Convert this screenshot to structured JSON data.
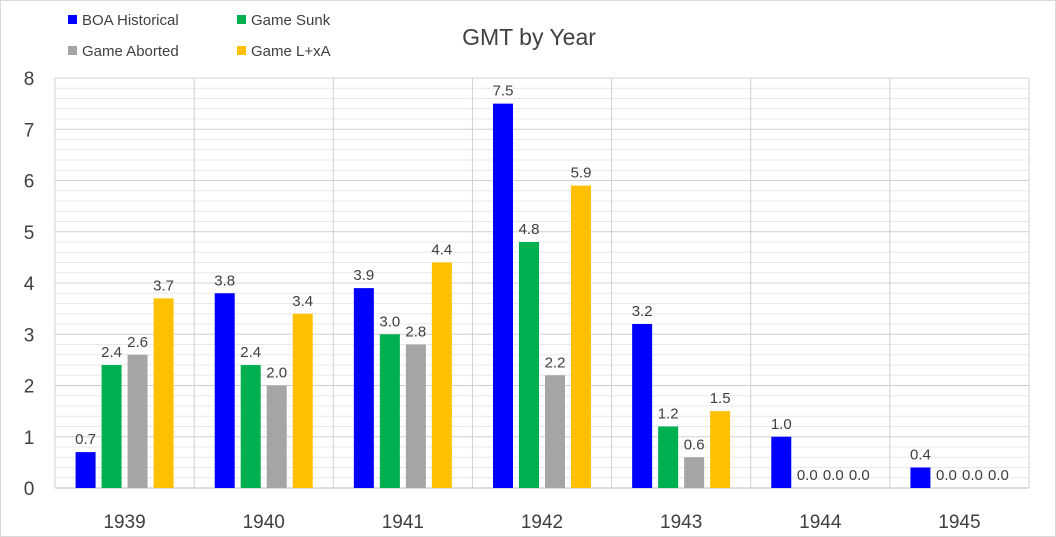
{
  "chart_data": {
    "type": "bar",
    "title": "GMT by Year",
    "xlabel": "",
    "ylabel": "",
    "categories": [
      "1939",
      "1940",
      "1941",
      "1942",
      "1943",
      "1944",
      "1945"
    ],
    "series": [
      {
        "name": "BOA Historical",
        "color": "#0000ff",
        "values": [
          0.7,
          3.8,
          3.9,
          7.5,
          3.2,
          1.0,
          0.4
        ]
      },
      {
        "name": "Game Sunk",
        "color": "#00b050",
        "values": [
          2.4,
          2.4,
          3.0,
          4.8,
          1.2,
          0.0,
          0.0
        ]
      },
      {
        "name": "Game Aborted",
        "color": "#a5a5a5",
        "values": [
          2.6,
          2.0,
          2.8,
          2.2,
          0.6,
          0.0,
          0.0
        ]
      },
      {
        "name": "Game L+xA",
        "color": "#ffc000",
        "values": [
          3.7,
          3.4,
          4.4,
          5.9,
          1.5,
          0.0,
          0.0
        ]
      }
    ],
    "ylim": [
      0,
      8
    ],
    "yticks": [
      "0",
      "1",
      "2",
      "3",
      "4",
      "5",
      "6",
      "7",
      "8"
    ],
    "y_minor_step": 0.2,
    "grid": true,
    "legend_position": "top-left",
    "data_labels": true
  }
}
